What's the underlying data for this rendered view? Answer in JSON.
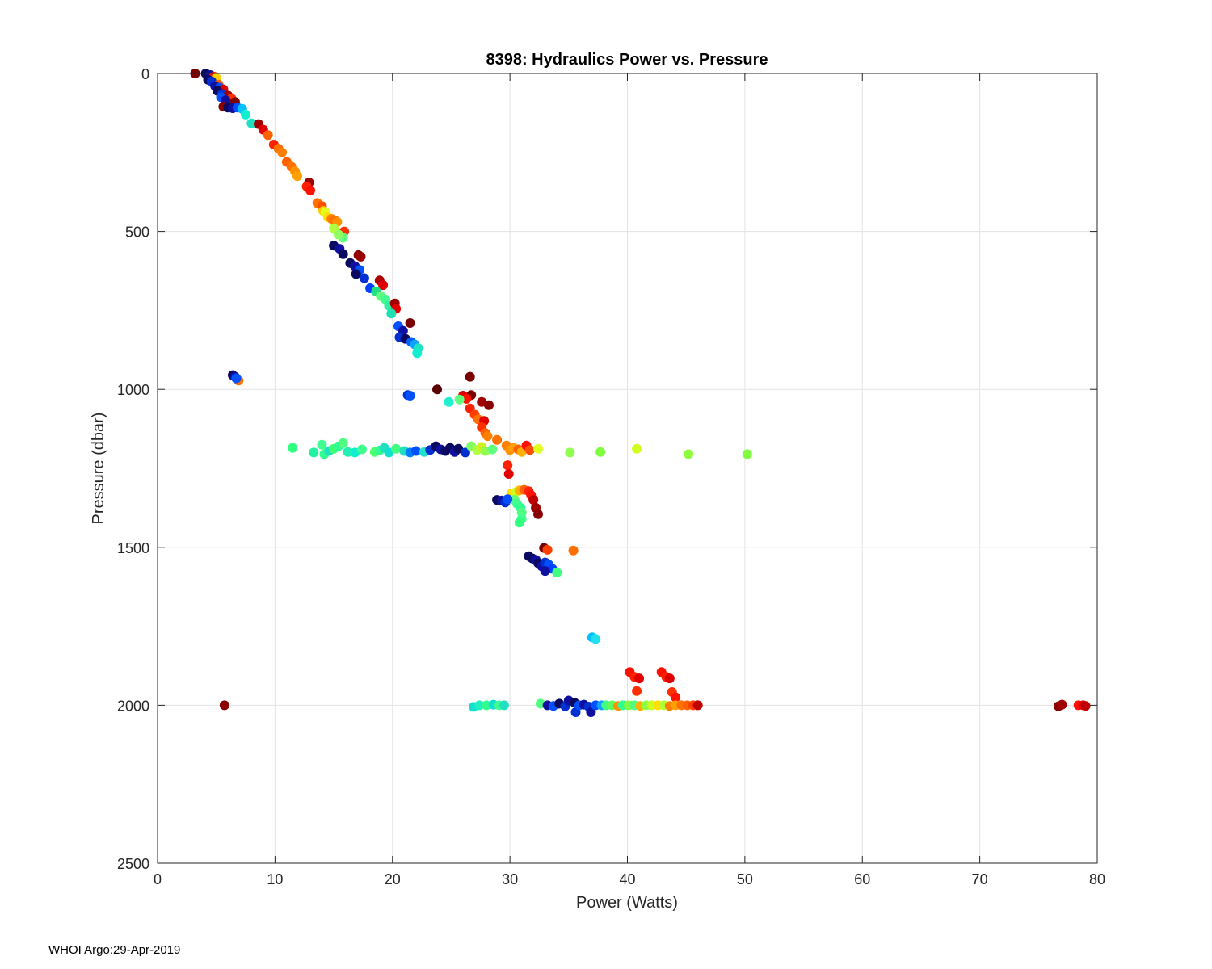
{
  "chart_data": {
    "type": "scatter",
    "title": "8398: Hydraulics Power vs. Pressure",
    "xlabel": "Power (Watts)",
    "ylabel": "Pressure (dbar)",
    "xlim": [
      0,
      80
    ],
    "ylim": [
      0,
      2500
    ],
    "y_reversed": true,
    "grid": true,
    "x_ticks": [
      0,
      10,
      20,
      30,
      40,
      50,
      60,
      70,
      80
    ],
    "y_ticks": [
      0,
      500,
      1000,
      1500,
      2000,
      2500
    ],
    "x_tick_labels": [
      "0",
      "10",
      "20",
      "30",
      "40",
      "50",
      "60",
      "70",
      "80"
    ],
    "y_tick_labels": [
      "0",
      "500",
      "1000",
      "1500",
      "2000",
      "2500"
    ],
    "color_note": "marker color varies by profile cycle (dark blue early to dark red late)",
    "points": [
      [
        3.2,
        0,
        "#7a0000"
      ],
      [
        4.1,
        0,
        "#0a0a60"
      ],
      [
        4.5,
        5,
        "#1010a0"
      ],
      [
        4.8,
        10,
        "#ff2000"
      ],
      [
        5.0,
        15,
        "#ffd000"
      ],
      [
        4.3,
        20,
        "#0a0a60"
      ],
      [
        4.6,
        25,
        "#0030d0"
      ],
      [
        5.2,
        35,
        "#ff6000"
      ],
      [
        4.9,
        40,
        "#1010a0"
      ],
      [
        5.3,
        45,
        "#0050ff"
      ],
      [
        5.6,
        50,
        "#e00000"
      ],
      [
        5.1,
        55,
        "#0a0a60"
      ],
      [
        5.5,
        65,
        "#0030d0"
      ],
      [
        6.0,
        70,
        "#a00000"
      ],
      [
        5.4,
        75,
        "#0050ff"
      ],
      [
        6.3,
        80,
        "#ff3000"
      ],
      [
        5.8,
        85,
        "#1010a0"
      ],
      [
        6.6,
        90,
        "#7a0000"
      ],
      [
        5.6,
        105,
        "#8a0000"
      ],
      [
        6.0,
        108,
        "#0a0a60"
      ],
      [
        6.4,
        110,
        "#1010a0"
      ],
      [
        6.8,
        108,
        "#0050ff"
      ],
      [
        7.2,
        112,
        "#00c0ff"
      ],
      [
        7.5,
        130,
        "#10f0d0"
      ],
      [
        8.0,
        158,
        "#20e0c0"
      ],
      [
        8.6,
        160,
        "#a00000"
      ],
      [
        9.0,
        178,
        "#e00000"
      ],
      [
        9.4,
        195,
        "#ff6000"
      ],
      [
        9.9,
        225,
        "#ff2000"
      ],
      [
        10.3,
        238,
        "#ff7000"
      ],
      [
        10.6,
        250,
        "#ff8000"
      ],
      [
        11.0,
        280,
        "#ff6000"
      ],
      [
        11.4,
        295,
        "#ff7000"
      ],
      [
        11.7,
        310,
        "#ff9000"
      ],
      [
        11.9,
        325,
        "#ffa000"
      ],
      [
        12.9,
        345,
        "#9a0000"
      ],
      [
        12.7,
        358,
        "#ff2000"
      ],
      [
        13.0,
        370,
        "#ff1000"
      ],
      [
        13.6,
        410,
        "#ff7000"
      ],
      [
        14.0,
        420,
        "#ff5000"
      ],
      [
        14.1,
        435,
        "#ffd000"
      ],
      [
        14.3,
        440,
        "#e0ff20"
      ],
      [
        14.5,
        455,
        "#ffe000"
      ],
      [
        14.8,
        460,
        "#ff8000"
      ],
      [
        15.1,
        465,
        "#ff7000"
      ],
      [
        15.3,
        470,
        "#ff9000"
      ],
      [
        15.0,
        490,
        "#b0ff40"
      ],
      [
        15.6,
        505,
        "#d0f020"
      ],
      [
        15.9,
        500,
        "#ff3000"
      ],
      [
        15.8,
        520,
        "#60ff80"
      ],
      [
        15.4,
        510,
        "#90ff60"
      ],
      [
        15.0,
        545,
        "#0a0a60"
      ],
      [
        15.5,
        555,
        "#1010a0"
      ],
      [
        15.8,
        572,
        "#0a0a60"
      ],
      [
        17.1,
        575,
        "#8a0000"
      ],
      [
        17.3,
        580,
        "#9a0000"
      ],
      [
        16.4,
        600,
        "#0a0a60"
      ],
      [
        16.8,
        610,
        "#1010a0"
      ],
      [
        17.2,
        622,
        "#0050ff"
      ],
      [
        16.9,
        635,
        "#0a0a60"
      ],
      [
        17.6,
        648,
        "#0030d0"
      ],
      [
        18.1,
        680,
        "#0040ff"
      ],
      [
        18.9,
        655,
        "#b00000"
      ],
      [
        19.2,
        670,
        "#e00000"
      ],
      [
        18.6,
        690,
        "#20e080"
      ],
      [
        19.0,
        705,
        "#60ff80"
      ],
      [
        19.4,
        715,
        "#40ff90"
      ],
      [
        19.7,
        735,
        "#30f0a0"
      ],
      [
        20.2,
        728,
        "#a00000"
      ],
      [
        20.3,
        745,
        "#e00000"
      ],
      [
        19.9,
        760,
        "#20e0b0"
      ],
      [
        21.5,
        790,
        "#7a0000"
      ],
      [
        20.5,
        800,
        "#0050ff"
      ],
      [
        20.9,
        815,
        "#1010a0"
      ],
      [
        20.6,
        835,
        "#0030d0"
      ],
      [
        21.1,
        840,
        "#0a0a60"
      ],
      [
        21.6,
        850,
        "#0060ff"
      ],
      [
        21.9,
        858,
        "#10a0ff"
      ],
      [
        22.2,
        870,
        "#20e0c0"
      ],
      [
        22.1,
        885,
        "#10f0d0"
      ],
      [
        6.4,
        955,
        "#0a0a60"
      ],
      [
        6.6,
        960,
        "#1010a0"
      ],
      [
        6.9,
        972,
        "#ff7000"
      ],
      [
        6.7,
        965,
        "#0050ff"
      ],
      [
        26.6,
        960,
        "#7a0000"
      ],
      [
        23.8,
        1000,
        "#5a0000"
      ],
      [
        26.7,
        1018,
        "#7a0000"
      ],
      [
        26.0,
        1020,
        "#e00000"
      ],
      [
        26.3,
        1030,
        "#ff1000"
      ],
      [
        27.6,
        1040,
        "#a00000"
      ],
      [
        28.2,
        1050,
        "#8a0000"
      ],
      [
        24.8,
        1040,
        "#20f0d0"
      ],
      [
        25.7,
        1032,
        "#60ff80"
      ],
      [
        21.3,
        1018,
        "#0030d0"
      ],
      [
        21.5,
        1020,
        "#0050ff"
      ],
      [
        26.6,
        1060,
        "#ff2000"
      ],
      [
        27.0,
        1080,
        "#ff4000"
      ],
      [
        27.3,
        1095,
        "#ff7000"
      ],
      [
        27.8,
        1100,
        "#e00000"
      ],
      [
        27.6,
        1120,
        "#ff3000"
      ],
      [
        27.9,
        1138,
        "#ff6000"
      ],
      [
        28.1,
        1148,
        "#ff8000"
      ],
      [
        28.9,
        1160,
        "#ff7000"
      ],
      [
        11.5,
        1185,
        "#30ff80"
      ],
      [
        13.3,
        1200,
        "#20f0a0"
      ],
      [
        14.0,
        1175,
        "#40ff90"
      ],
      [
        14.2,
        1205,
        "#30ff90"
      ],
      [
        14.6,
        1195,
        "#20e0c0"
      ],
      [
        15.0,
        1188,
        "#40ff70"
      ],
      [
        15.4,
        1180,
        "#30ff90"
      ],
      [
        15.8,
        1170,
        "#50ff80"
      ],
      [
        16.2,
        1198,
        "#20f0b0"
      ],
      [
        16.8,
        1200,
        "#10f0d0"
      ],
      [
        17.4,
        1190,
        "#40ff90"
      ],
      [
        18.5,
        1198,
        "#50ff70"
      ],
      [
        18.9,
        1193,
        "#30ff90"
      ],
      [
        19.3,
        1185,
        "#20e0c0"
      ],
      [
        19.7,
        1200,
        "#10e0d0"
      ],
      [
        20.3,
        1188,
        "#40ff80"
      ],
      [
        21.0,
        1195,
        "#20e0c0"
      ],
      [
        21.5,
        1200,
        "#0080ff"
      ],
      [
        22.0,
        1195,
        "#0050ff"
      ],
      [
        22.7,
        1198,
        "#20e0d0"
      ],
      [
        23.2,
        1192,
        "#0030d0"
      ],
      [
        23.7,
        1180,
        "#0a0a60"
      ],
      [
        24.1,
        1190,
        "#1010a0"
      ],
      [
        24.5,
        1195,
        "#0a0a60"
      ],
      [
        24.9,
        1185,
        "#0a0a60"
      ],
      [
        25.3,
        1198,
        "#1010a0"
      ],
      [
        25.6,
        1188,
        "#0a0a60"
      ],
      [
        26.2,
        1200,
        "#0030d0"
      ],
      [
        26.7,
        1180,
        "#80ff60"
      ],
      [
        27.2,
        1192,
        "#b0ff40"
      ],
      [
        27.6,
        1182,
        "#d0f020"
      ],
      [
        27.9,
        1195,
        "#90ff50"
      ],
      [
        28.5,
        1190,
        "#60ff80"
      ],
      [
        29.7,
        1178,
        "#ff8000"
      ],
      [
        30.0,
        1192,
        "#ff9000"
      ],
      [
        30.3,
        1185,
        "#ffa000"
      ],
      [
        30.7,
        1190,
        "#ff6000"
      ],
      [
        31.0,
        1198,
        "#ffb000"
      ],
      [
        31.4,
        1178,
        "#ff1000"
      ],
      [
        31.7,
        1192,
        "#ff5000"
      ],
      [
        32.4,
        1188,
        "#e0ff20"
      ],
      [
        35.1,
        1200,
        "#90ff50"
      ],
      [
        37.7,
        1198,
        "#80ff40"
      ],
      [
        40.8,
        1188,
        "#d0ff20"
      ],
      [
        45.2,
        1205,
        "#90ff40"
      ],
      [
        50.2,
        1205,
        "#80ff40"
      ],
      [
        29.8,
        1240,
        "#ff2000"
      ],
      [
        29.9,
        1268,
        "#e00000"
      ],
      [
        30.1,
        1330,
        "#ffe000"
      ],
      [
        30.5,
        1325,
        "#d0ff20"
      ],
      [
        30.8,
        1320,
        "#ffb000"
      ],
      [
        31.2,
        1318,
        "#ff6000"
      ],
      [
        31.6,
        1322,
        "#ff2000"
      ],
      [
        31.8,
        1335,
        "#ff1000"
      ],
      [
        32.0,
        1350,
        "#c00000"
      ],
      [
        32.2,
        1375,
        "#a00000"
      ],
      [
        32.4,
        1395,
        "#8a0000"
      ],
      [
        30.4,
        1350,
        "#60ff80"
      ],
      [
        30.6,
        1362,
        "#40ff90"
      ],
      [
        30.9,
        1375,
        "#30ff90"
      ],
      [
        31.0,
        1390,
        "#50ff80"
      ],
      [
        31.0,
        1410,
        "#40ff90"
      ],
      [
        30.8,
        1422,
        "#30ff80"
      ],
      [
        28.9,
        1350,
        "#0a0a60"
      ],
      [
        29.3,
        1352,
        "#1010a0"
      ],
      [
        29.6,
        1358,
        "#0030d0"
      ],
      [
        29.8,
        1348,
        "#0050ff"
      ],
      [
        32.9,
        1502,
        "#7a0000"
      ],
      [
        33.2,
        1508,
        "#ff4000"
      ],
      [
        35.4,
        1510,
        "#ff7000"
      ],
      [
        31.6,
        1528,
        "#0a0a60"
      ],
      [
        31.9,
        1535,
        "#0a0a60"
      ],
      [
        32.2,
        1540,
        "#1010a0"
      ],
      [
        32.4,
        1550,
        "#0a0a60"
      ],
      [
        32.7,
        1560,
        "#1010a0"
      ],
      [
        33.0,
        1548,
        "#0030d0"
      ],
      [
        33.3,
        1555,
        "#0050ff"
      ],
      [
        33.6,
        1568,
        "#0040ff"
      ],
      [
        33.0,
        1575,
        "#1010a0"
      ],
      [
        34.0,
        1580,
        "#40ff80"
      ],
      [
        37.0,
        1785,
        "#00c0ff"
      ],
      [
        37.3,
        1790,
        "#20e0f0"
      ],
      [
        40.2,
        1895,
        "#ff1000"
      ],
      [
        40.6,
        1910,
        "#ff2000"
      ],
      [
        41.0,
        1915,
        "#e00000"
      ],
      [
        40.8,
        1955,
        "#ff3000"
      ],
      [
        42.9,
        1895,
        "#ff1000"
      ],
      [
        43.3,
        1910,
        "#ff2000"
      ],
      [
        43.6,
        1915,
        "#e00000"
      ],
      [
        43.8,
        1958,
        "#ff3000"
      ],
      [
        44.1,
        1975,
        "#ff1000"
      ],
      [
        5.7,
        2000,
        "#8a0000"
      ],
      [
        26.9,
        2005,
        "#10e0d0"
      ],
      [
        27.4,
        2000,
        "#20f0c0"
      ],
      [
        28.0,
        2000,
        "#30ff90"
      ],
      [
        28.6,
        1998,
        "#10e0d0"
      ],
      [
        29.1,
        2000,
        "#40ff90"
      ],
      [
        29.5,
        2000,
        "#20e0c0"
      ],
      [
        32.6,
        1995,
        "#50ff80"
      ],
      [
        33.2,
        2000,
        "#1010a0"
      ],
      [
        33.7,
        2002,
        "#0050ff"
      ],
      [
        34.2,
        1995,
        "#0a0a60"
      ],
      [
        34.7,
        2003,
        "#0030d0"
      ],
      [
        35.0,
        1985,
        "#1010a0"
      ],
      [
        35.5,
        1992,
        "#0a0a60"
      ],
      [
        35.6,
        2022,
        "#0030d0"
      ],
      [
        35.9,
        2000,
        "#0050ff"
      ],
      [
        36.3,
        1998,
        "#1010a0"
      ],
      [
        36.7,
        2004,
        "#0030d0"
      ],
      [
        36.9,
        2022,
        "#1010a0"
      ],
      [
        37.3,
        2000,
        "#0050ff"
      ],
      [
        37.8,
        2000,
        "#10a0ff"
      ],
      [
        38.2,
        2000,
        "#40ff80"
      ],
      [
        38.7,
        2000,
        "#60ff60"
      ],
      [
        39.2,
        2002,
        "#ff9000"
      ],
      [
        39.6,
        2000,
        "#30ff90"
      ],
      [
        40.1,
        2000,
        "#80ff40"
      ],
      [
        40.6,
        2000,
        "#50ff80"
      ],
      [
        41.1,
        2002,
        "#ffb000"
      ],
      [
        41.6,
        2000,
        "#90ff40"
      ],
      [
        42.1,
        2000,
        "#d0ff20"
      ],
      [
        42.6,
        2000,
        "#ffe000"
      ],
      [
        43.1,
        2000,
        "#b0ff30"
      ],
      [
        43.6,
        2002,
        "#ff8000"
      ],
      [
        44.1,
        2000,
        "#ffa000"
      ],
      [
        44.6,
        2000,
        "#ff7000"
      ],
      [
        45.1,
        2000,
        "#ff6000"
      ],
      [
        45.6,
        2000,
        "#ff4000"
      ],
      [
        46.0,
        2000,
        "#c00000"
      ],
      [
        76.7,
        2003,
        "#8a0000"
      ],
      [
        77.0,
        1998,
        "#a00000"
      ],
      [
        78.4,
        2000,
        "#ff1000"
      ],
      [
        78.8,
        2000,
        "#e00000"
      ],
      [
        79.0,
        2002,
        "#c00000"
      ]
    ]
  },
  "footer": {
    "text": "WHOI Argo:29-Apr-2019"
  }
}
